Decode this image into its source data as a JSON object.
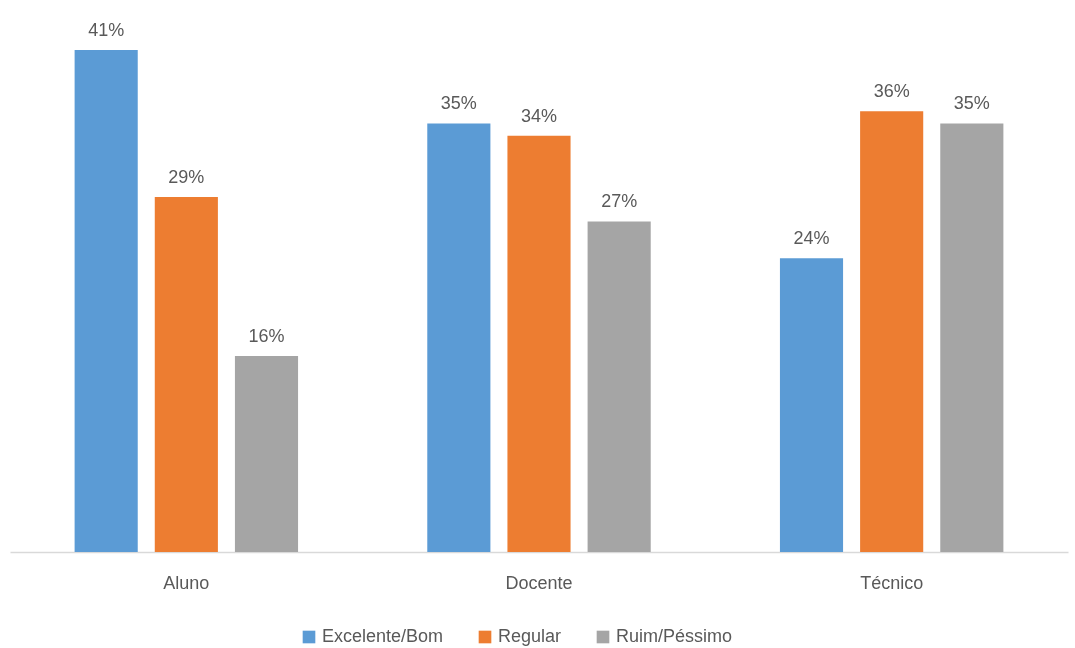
{
  "chart_data": {
    "type": "bar",
    "categories": [
      "Aluno",
      "Docente",
      "Técnico"
    ],
    "series": [
      {
        "name": "Excelente/Bom",
        "color": "#5b9bd5",
        "values": [
          41,
          35,
          24
        ],
        "value_labels": [
          "41%",
          "35%",
          "24%"
        ]
      },
      {
        "name": "Regular",
        "color": "#ed7d31",
        "values": [
          29,
          34,
          36
        ],
        "value_labels": [
          "29%",
          "34%",
          "36%"
        ]
      },
      {
        "name": "Ruim/Péssimo",
        "color": "#a5a5a5",
        "values": [
          16,
          27,
          35
        ],
        "value_labels": [
          "16%",
          "27%",
          "35%"
        ]
      }
    ],
    "legend": "bottom"
  }
}
